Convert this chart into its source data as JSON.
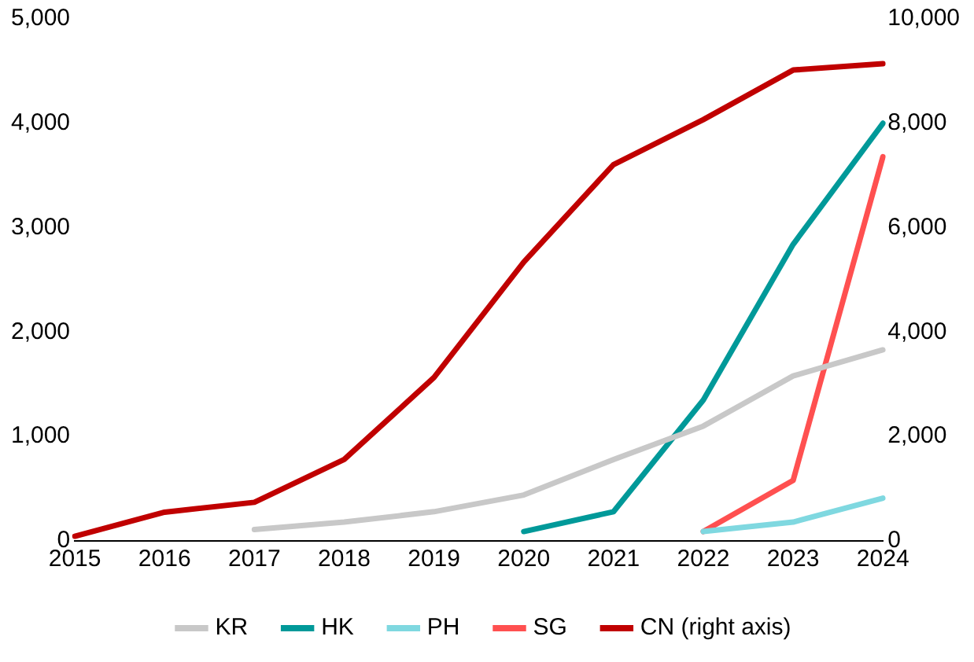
{
  "chart_data": {
    "type": "line",
    "categories": [
      "2015",
      "2016",
      "2017",
      "2018",
      "2019",
      "2020",
      "2021",
      "2022",
      "2023",
      "2024"
    ],
    "series": [
      {
        "name": "KR",
        "color": "#c8c8c8",
        "values": [
          null,
          null,
          110,
          180,
          280,
          440,
          780,
          1100,
          1580,
          1830
        ]
      },
      {
        "name": "HK",
        "color": "#009999",
        "values": [
          null,
          null,
          null,
          null,
          null,
          90,
          280,
          1350,
          2840,
          4000
        ]
      },
      {
        "name": "PH",
        "color": "#7fd8e0",
        "values": [
          null,
          null,
          null,
          null,
          null,
          null,
          null,
          90,
          180,
          410
        ]
      },
      {
        "name": "SG",
        "color": "#ff5050",
        "values": [
          null,
          null,
          null,
          null,
          null,
          null,
          null,
          90,
          580,
          3680
        ]
      },
      {
        "name": "CN (right axis)",
        "color": "#c00000",
        "axis": "y2",
        "values": [
          90,
          550,
          740,
          1560,
          3130,
          5340,
          7210,
          8070,
          9020,
          9140
        ]
      }
    ],
    "ylim": [
      0,
      5000
    ],
    "yticks": [
      0,
      {
        "value": 1000,
        "label": "1,000"
      },
      {
        "value": 2000,
        "label": "2,000"
      },
      {
        "value": 3000,
        "label": "3,000"
      },
      {
        "value": 4000,
        "label": "4,000"
      },
      {
        "value": 5000,
        "label": "5,000"
      }
    ],
    "y2lim": [
      0,
      10000
    ],
    "y2ticks": [
      0,
      {
        "value": 2000,
        "label": "2,000"
      },
      {
        "value": 4000,
        "label": "4,000"
      },
      {
        "value": 6000,
        "label": "6,000"
      },
      {
        "value": 8000,
        "label": "8,000"
      },
      {
        "value": 10000,
        "label": "10,000"
      }
    ],
    "grid": false,
    "legend": "bottom",
    "marker": "none",
    "line_style": "solid"
  }
}
